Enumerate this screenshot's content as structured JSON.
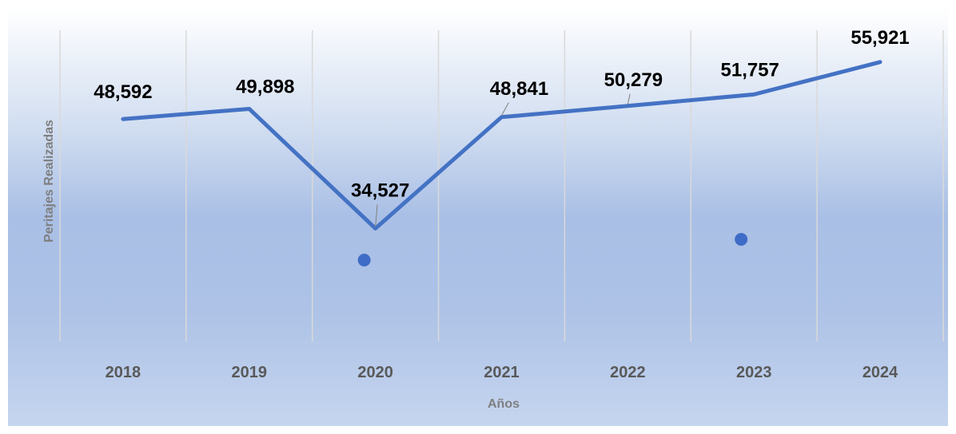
{
  "chart_data": {
    "type": "line",
    "title": "",
    "xlabel": "Años",
    "ylabel": "Peritajes Realizadas",
    "categories": [
      "2018",
      "2019",
      "2020",
      "2021",
      "2022",
      "2023",
      "2024"
    ],
    "series": [
      {
        "values": [
          48592,
          49898,
          34527,
          48841,
          50279,
          51757,
          55921
        ]
      }
    ],
    "data_labels": [
      "48,592",
      "49,898",
      "34,527",
      "48,841",
      "50,279",
      "51,757",
      "55,921"
    ],
    "grid": "vertical",
    "legend": "none"
  },
  "colors": {
    "line": "#4472c4",
    "marker": "#3e6cc6",
    "gridline": "#d9d9d9",
    "tick_text": "#595959",
    "axis_title": "#7f7f7f",
    "data_label": "#000000"
  },
  "annotations": {
    "markers": [
      {
        "category": "2020"
      },
      {
        "category": "2023"
      }
    ]
  }
}
